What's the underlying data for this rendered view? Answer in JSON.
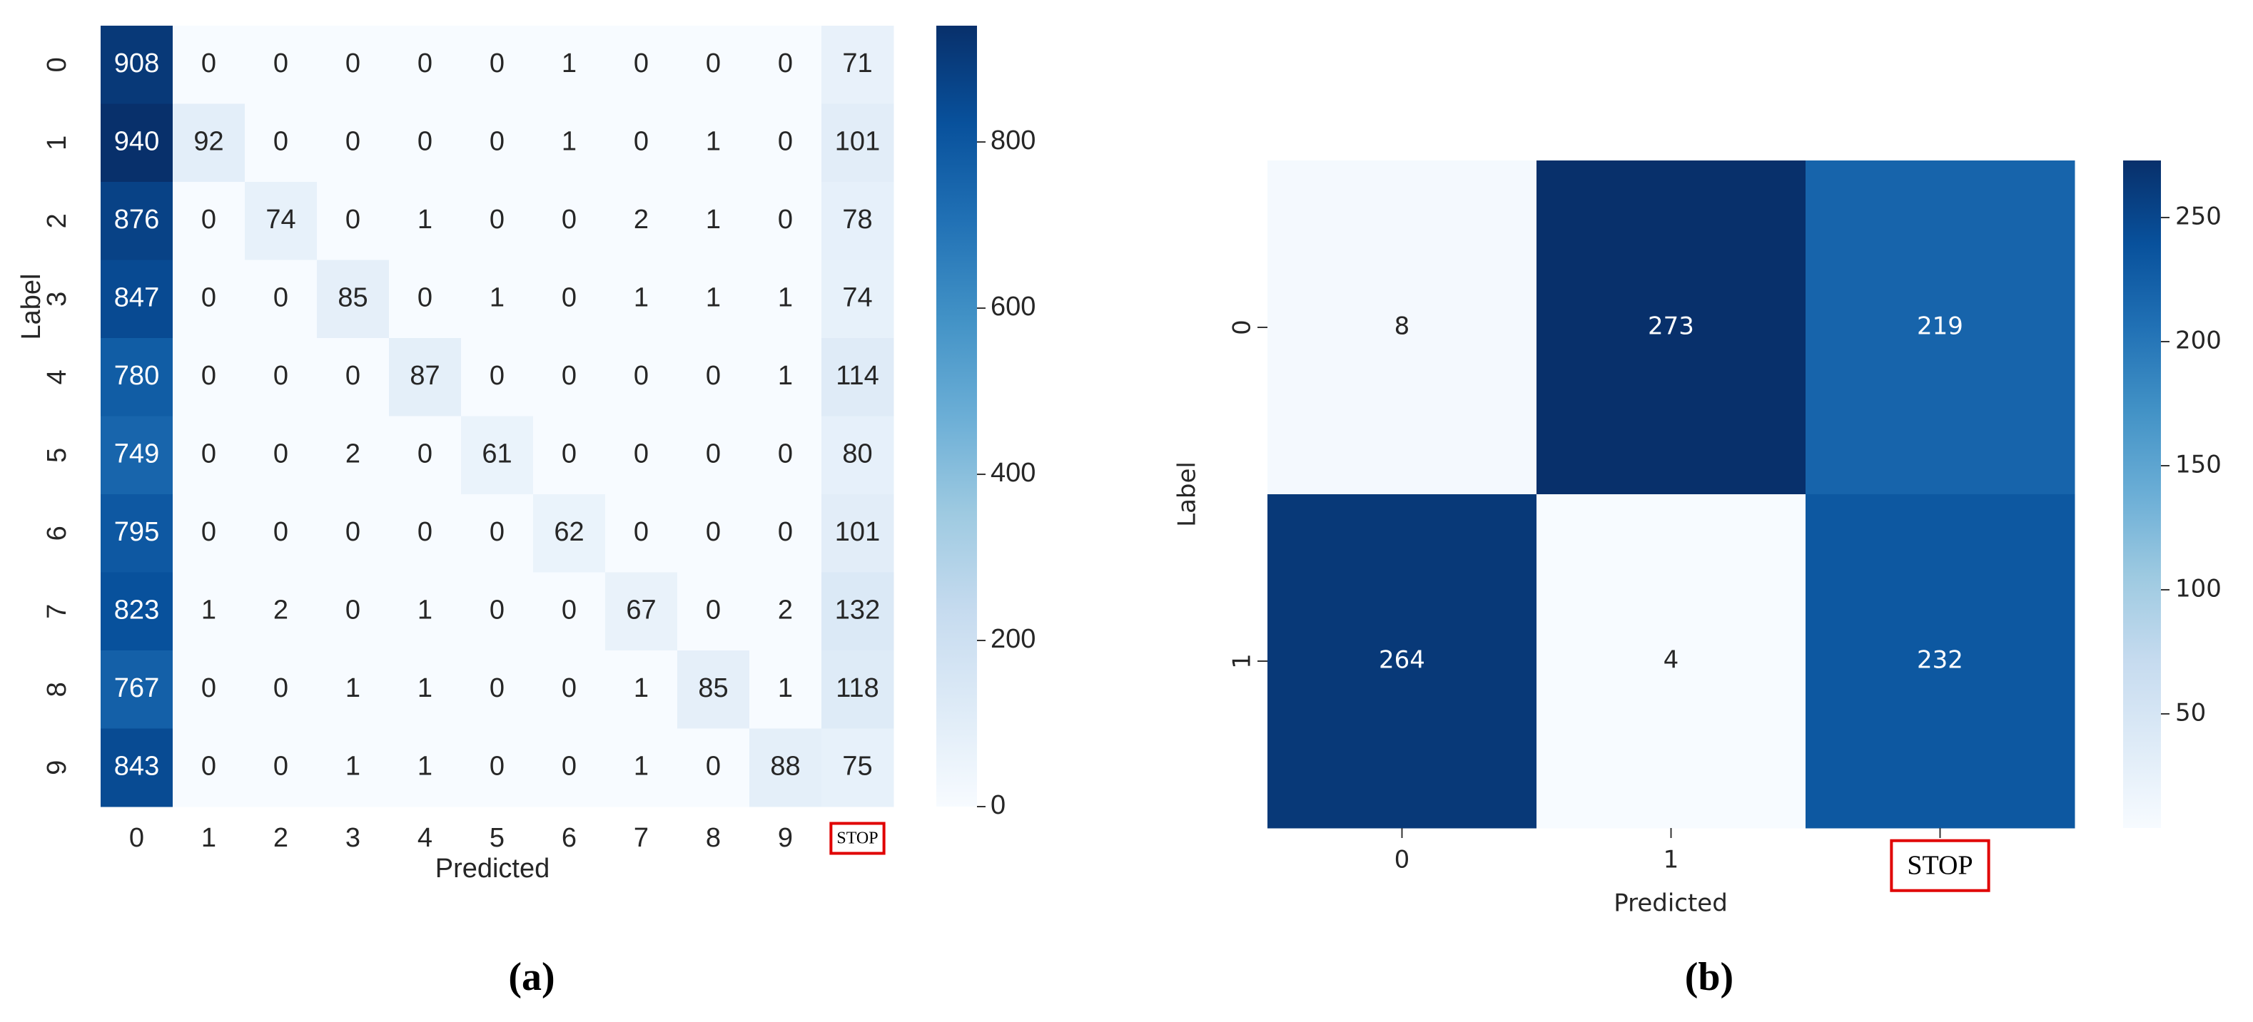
{
  "chart_data": [
    {
      "type": "heatmap",
      "caption": "(a)",
      "xlabel": "Predicted",
      "ylabel": "Label",
      "x_categories": [
        "0",
        "1",
        "2",
        "3",
        "4",
        "5",
        "6",
        "7",
        "8",
        "9",
        "STOP"
      ],
      "y_categories": [
        "0",
        "1",
        "2",
        "3",
        "4",
        "5",
        "6",
        "7",
        "8",
        "9"
      ],
      "values": [
        [
          908,
          0,
          0,
          0,
          0,
          0,
          1,
          0,
          0,
          0,
          71
        ],
        [
          940,
          92,
          0,
          0,
          0,
          0,
          1,
          0,
          1,
          0,
          101
        ],
        [
          876,
          0,
          74,
          0,
          1,
          0,
          0,
          2,
          1,
          0,
          78
        ],
        [
          847,
          0,
          0,
          85,
          0,
          1,
          0,
          1,
          1,
          1,
          74
        ],
        [
          780,
          0,
          0,
          0,
          87,
          0,
          0,
          0,
          0,
          1,
          114
        ],
        [
          749,
          0,
          0,
          2,
          0,
          61,
          0,
          0,
          0,
          0,
          80
        ],
        [
          795,
          0,
          0,
          0,
          0,
          0,
          62,
          0,
          0,
          0,
          101
        ],
        [
          823,
          1,
          2,
          0,
          1,
          0,
          0,
          67,
          0,
          2,
          132
        ],
        [
          767,
          0,
          0,
          1,
          1,
          0,
          0,
          1,
          85,
          1,
          118
        ],
        [
          843,
          0,
          0,
          1,
          1,
          0,
          0,
          1,
          0,
          88,
          75
        ]
      ],
      "colormap": "Blues",
      "clim": [
        0,
        940
      ],
      "cticks": [
        0,
        200,
        400,
        600,
        800
      ]
    },
    {
      "type": "heatmap",
      "caption": "(b)",
      "xlabel": "Predicted",
      "ylabel": "Label",
      "x_categories": [
        "0",
        "1",
        "STOP"
      ],
      "y_categories": [
        "0",
        "1"
      ],
      "values": [
        [
          8,
          273,
          219
        ],
        [
          264,
          4,
          232
        ]
      ],
      "colormap": "Blues",
      "clim": [
        4,
        273
      ],
      "cticks": [
        50,
        100,
        150,
        200,
        250
      ]
    }
  ]
}
